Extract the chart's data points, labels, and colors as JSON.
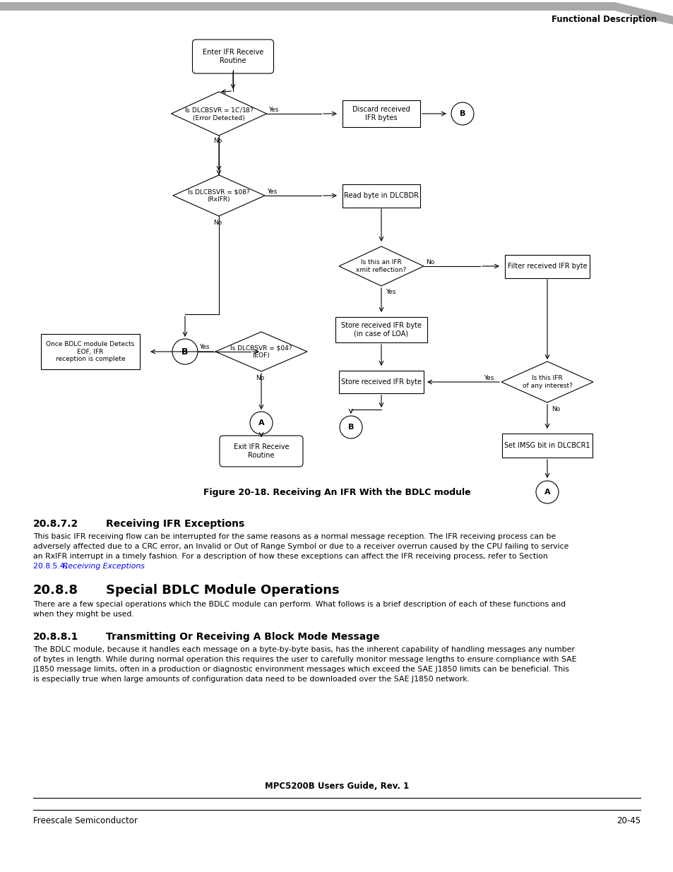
{
  "header_bar_color": "#aaaaaa",
  "header_text": "Functional Description",
  "figure_caption": "Figure 20-18. Receiving An IFR With the BDLC module",
  "section_272_title": "20.8.7.2",
  "section_272_name": "Receiving IFR Exceptions",
  "section_272_body1": "This basic IFR receiving flow can be interrupted for the same reasons as a normal message reception. The IFR receiving process can be",
  "section_272_body2": "adversely affected due to a CRC error, an Invalid or Out of Range Symbol or due to a receiver overrun caused by the CPU failing to service",
  "section_272_body3": "an RxIFR interrupt in a timely fashion. For a description of how these exceptions can affect the IFR receiving process, refer to ",
  "section_272_link": "Section",
  "section_272_body4": "20.8.5.4, ",
  "section_272_italic": "Receiving Exceptions",
  "section_272_body5": ".",
  "section_88_title": "20.8.8",
  "section_88_name": "Special BDLC Module Operations",
  "section_88_body": "There are a few special operations which the BDLC module can perform. What follows is a brief description of each of these functions and\nwhen they might be used.",
  "section_881_title": "20.8.8.1",
  "section_881_name": "Transmitting Or Receiving A Block Mode Message",
  "section_881_body": "The BDLC module, because it handles each message on a byte-by-byte basis, has the inherent capability of handling messages any number\nof bytes in length. While during normal operation this requires the user to carefully monitor message lengths to ensure compliance with SAE\nJ1850 message limits, often in a production or diagnostic environment messages which exceed the SAE J1850 limits can be beneficial. This\nis especially true when large amounts of configuration data need to be downloaded over the SAE J1850 network.",
  "footer_center": "MPC5200B Users Guide, Rev. 1",
  "footer_left": "Freescale Semiconductor",
  "footer_right": "20-45",
  "bg_color": "#ffffff",
  "link_color": "#0000ff",
  "black": "#000000",
  "white": "#ffffff",
  "gray": "#888888"
}
